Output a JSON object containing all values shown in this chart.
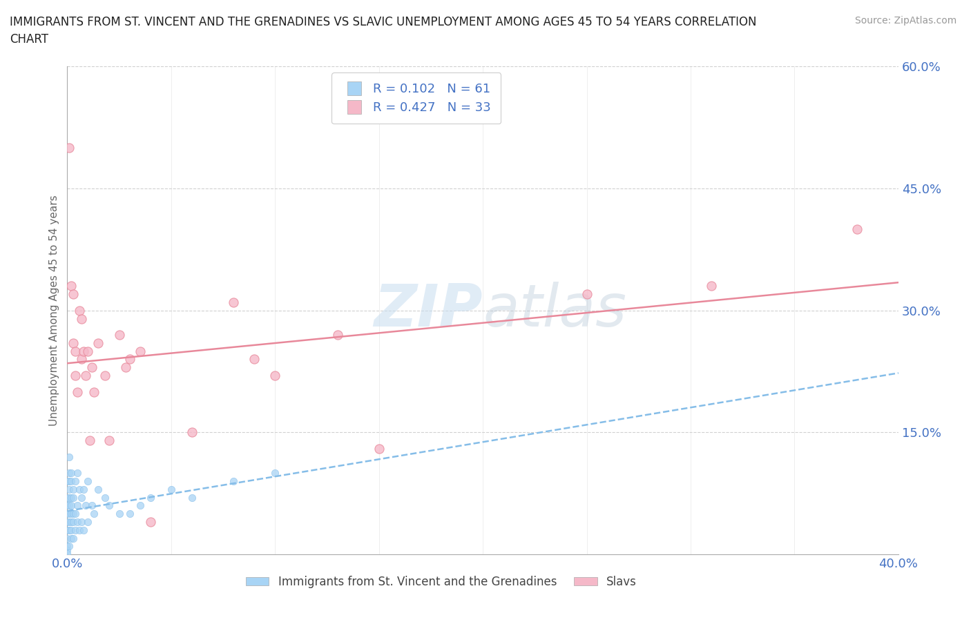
{
  "title_line1": "IMMIGRANTS FROM ST. VINCENT AND THE GRENADINES VS SLAVIC UNEMPLOYMENT AMONG AGES 45 TO 54 YEARS CORRELATION",
  "title_line2": "CHART",
  "source": "Source: ZipAtlas.com",
  "ylabel": "Unemployment Among Ages 45 to 54 years",
  "xlim": [
    0.0,
    0.4
  ],
  "ylim": [
    0.0,
    0.6
  ],
  "yticks": [
    0.0,
    0.15,
    0.3,
    0.45,
    0.6
  ],
  "xticks": [
    0.0,
    0.05,
    0.1,
    0.15,
    0.2,
    0.25,
    0.3,
    0.35,
    0.4
  ],
  "xtick_labels": [
    "0.0%",
    "",
    "",
    "",
    "",
    "",
    "",
    "",
    "40.0%"
  ],
  "ytick_labels": [
    "",
    "15.0%",
    "30.0%",
    "45.0%",
    "60.0%"
  ],
  "series1_label": "Immigrants from St. Vincent and the Grenadines",
  "series2_label": "Slavs",
  "color1": "#a8d4f5",
  "color2": "#f5b8c8",
  "line1_color": "#85bde8",
  "line2_color": "#e8889a",
  "background_color": "#ffffff",
  "r1": 0.102,
  "n1": 61,
  "r2": 0.427,
  "n2": 33,
  "series1_x": [
    0.0,
    0.0,
    0.0,
    0.0,
    0.0,
    0.0,
    0.0,
    0.0,
    0.0,
    0.0,
    0.001,
    0.001,
    0.001,
    0.001,
    0.001,
    0.001,
    0.001,
    0.001,
    0.001,
    0.001,
    0.002,
    0.002,
    0.002,
    0.002,
    0.002,
    0.002,
    0.002,
    0.002,
    0.003,
    0.003,
    0.003,
    0.003,
    0.003,
    0.004,
    0.004,
    0.004,
    0.005,
    0.005,
    0.005,
    0.006,
    0.006,
    0.007,
    0.007,
    0.008,
    0.008,
    0.009,
    0.01,
    0.01,
    0.012,
    0.013,
    0.015,
    0.018,
    0.02,
    0.025,
    0.03,
    0.035,
    0.04,
    0.05,
    0.06,
    0.08,
    0.1
  ],
  "series1_y": [
    0.09,
    0.07,
    0.06,
    0.05,
    0.04,
    0.03,
    0.02,
    0.01,
    0.005,
    0.001,
    0.12,
    0.1,
    0.09,
    0.08,
    0.07,
    0.06,
    0.05,
    0.04,
    0.03,
    0.01,
    0.1,
    0.09,
    0.07,
    0.06,
    0.05,
    0.04,
    0.03,
    0.02,
    0.08,
    0.07,
    0.05,
    0.04,
    0.02,
    0.09,
    0.05,
    0.03,
    0.1,
    0.06,
    0.04,
    0.08,
    0.03,
    0.07,
    0.04,
    0.08,
    0.03,
    0.06,
    0.09,
    0.04,
    0.06,
    0.05,
    0.08,
    0.07,
    0.06,
    0.05,
    0.05,
    0.06,
    0.07,
    0.08,
    0.07,
    0.09,
    0.1
  ],
  "series2_x": [
    0.001,
    0.002,
    0.003,
    0.003,
    0.004,
    0.004,
    0.005,
    0.006,
    0.007,
    0.007,
    0.008,
    0.009,
    0.01,
    0.011,
    0.012,
    0.013,
    0.015,
    0.018,
    0.02,
    0.025,
    0.028,
    0.03,
    0.035,
    0.04,
    0.06,
    0.08,
    0.09,
    0.1,
    0.13,
    0.15,
    0.25,
    0.31,
    0.38
  ],
  "series2_y": [
    0.5,
    0.33,
    0.32,
    0.26,
    0.25,
    0.22,
    0.2,
    0.3,
    0.29,
    0.24,
    0.25,
    0.22,
    0.25,
    0.14,
    0.23,
    0.2,
    0.26,
    0.22,
    0.14,
    0.27,
    0.23,
    0.24,
    0.25,
    0.04,
    0.15,
    0.31,
    0.24,
    0.22,
    0.27,
    0.13,
    0.32,
    0.33,
    0.4
  ]
}
